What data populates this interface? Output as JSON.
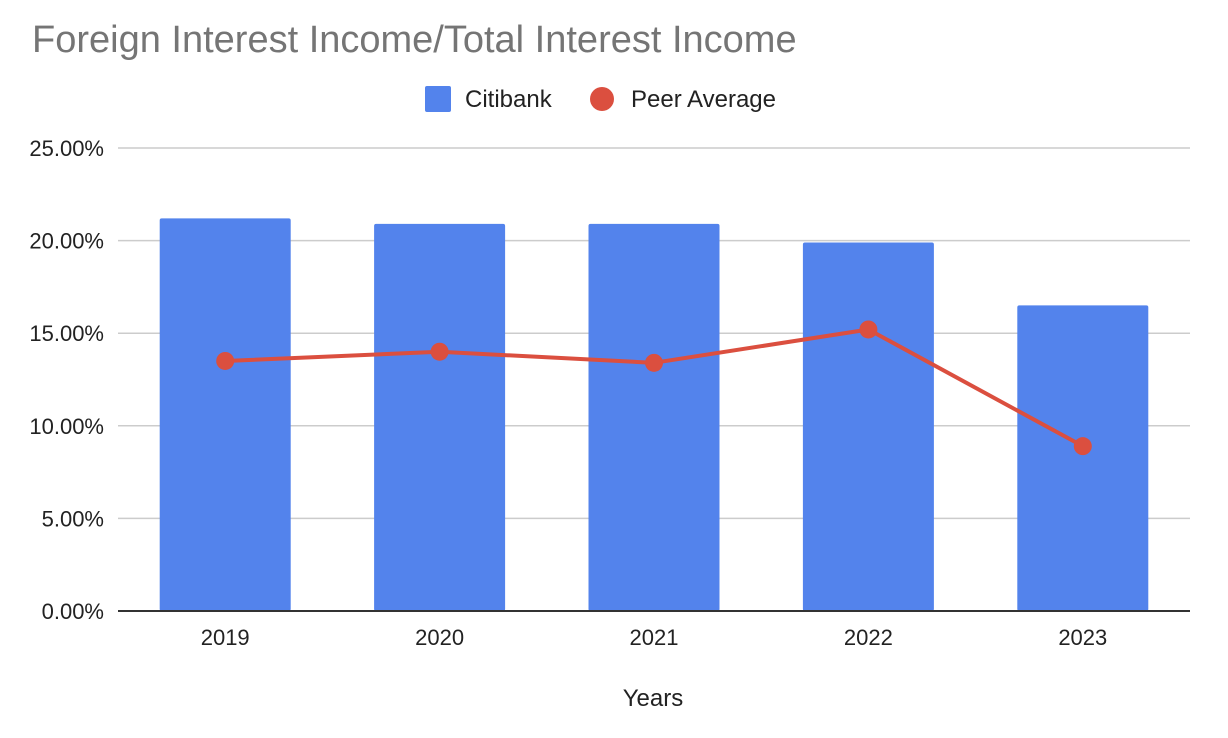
{
  "chart_data": {
    "type": "bar",
    "title": "Foreign Interest Income/Total Interest Income",
    "xlabel": "Years",
    "ylabel": "",
    "categories": [
      "2019",
      "2020",
      "2021",
      "2022",
      "2023"
    ],
    "ylim": [
      0,
      25
    ],
    "yticks": [
      0,
      5,
      10,
      15,
      20,
      25
    ],
    "ytick_labels": [
      "0.00%",
      "5.00%",
      "10.00%",
      "15.00%",
      "20.00%",
      "25.00%"
    ],
    "grid": true,
    "legend_position": "top-center",
    "series": [
      {
        "name": "Citibank",
        "kind": "bar",
        "color": "#5383EC",
        "values": [
          21.2,
          20.9,
          20.9,
          19.9,
          16.5
        ]
      },
      {
        "name": "Peer Average",
        "kind": "line",
        "color": "#DB4F3F",
        "values": [
          13.5,
          14.0,
          13.4,
          15.2,
          8.9
        ]
      }
    ]
  }
}
